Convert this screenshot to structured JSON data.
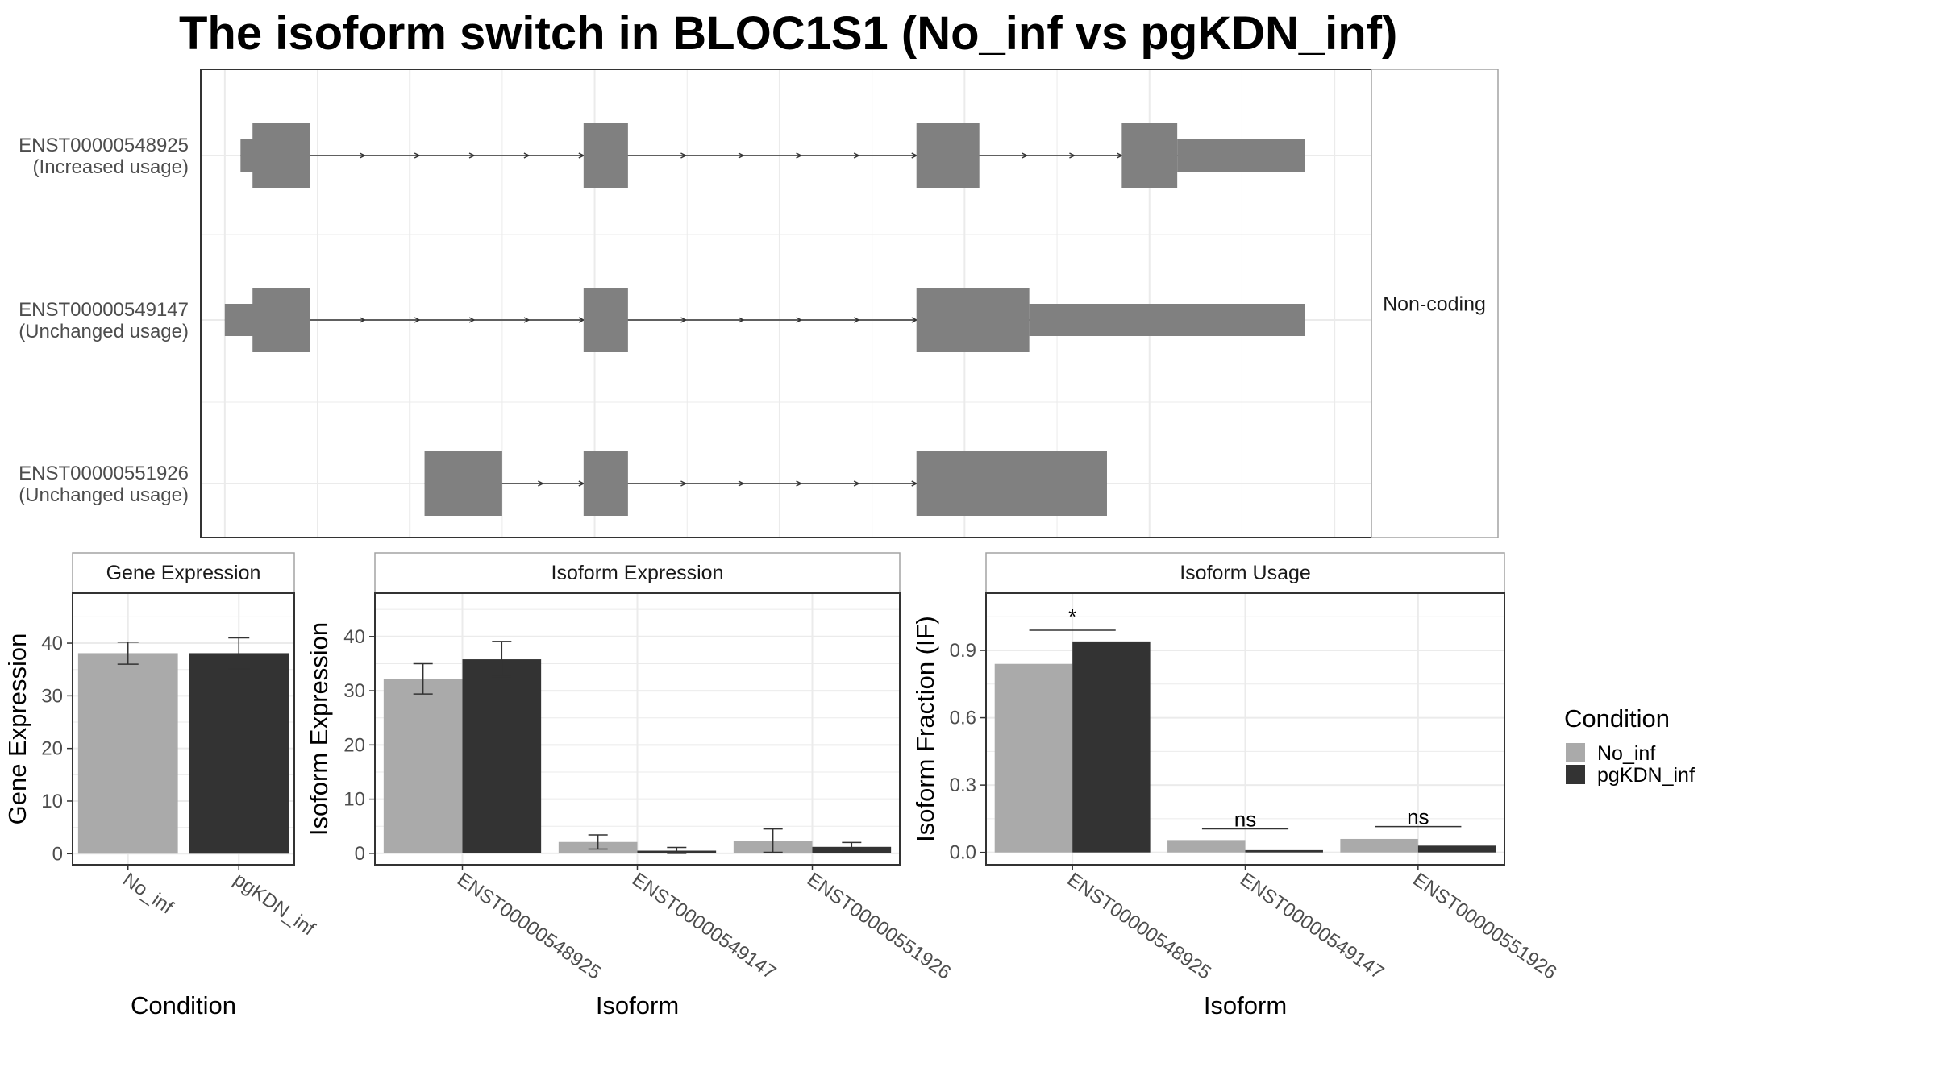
{
  "title": "The isoform switch in BLOC1S1 (No_inf vs pgKDN_inf)",
  "colors": {
    "exon": "#808080",
    "No_inf": "#AAAAAA",
    "pgKDN_inf": "#333333",
    "grid": "#EBEBEB",
    "border": "#333333",
    "strip_border": "#A3A3A3"
  },
  "chart_data": [
    {
      "type": "gene-structure",
      "strip": "Non-coding",
      "grid": true,
      "transcripts": [
        {
          "id": "ENST00000548925",
          "label": "(Increased usage)",
          "exons": [
            {
              "start": 0.85,
              "end": 4.6,
              "kind": "utr"
            },
            {
              "start": 1.5,
              "end": 4.6,
              "kind": "cds"
            },
            {
              "start": 19.4,
              "end": 21.8,
              "kind": "cds"
            },
            {
              "start": 37.4,
              "end": 40.8,
              "kind": "cds"
            },
            {
              "start": 48.5,
              "end": 51.5,
              "kind": "cds"
            },
            {
              "start": 51.5,
              "end": 58.4,
              "kind": "utr"
            }
          ]
        },
        {
          "id": "ENST00000549147",
          "label": "(Unchanged usage)",
          "exons": [
            {
              "start": 0.0,
              "end": 4.6,
              "kind": "utr"
            },
            {
              "start": 1.5,
              "end": 4.6,
              "kind": "cds"
            },
            {
              "start": 19.4,
              "end": 21.8,
              "kind": "cds"
            },
            {
              "start": 37.4,
              "end": 43.5,
              "kind": "cds"
            },
            {
              "start": 43.5,
              "end": 58.4,
              "kind": "utr"
            }
          ]
        },
        {
          "id": "ENST00000551926",
          "label": "(Unchanged usage)",
          "exons": [
            {
              "start": 10.8,
              "end": 15.0,
              "kind": "cds"
            },
            {
              "start": 19.4,
              "end": 21.8,
              "kind": "cds"
            },
            {
              "start": 37.4,
              "end": 47.7,
              "kind": "cds"
            }
          ]
        }
      ]
    },
    {
      "type": "bar",
      "strip": "Gene Expression",
      "xlabel": "Condition",
      "ylabel": "Gene Expression",
      "categories": [
        "No_inf",
        "pgKDN_inf"
      ],
      "values": [
        38.1,
        38.1
      ],
      "errors": [
        [
          36.0,
          40.2
        ],
        [
          35.1,
          41.0
        ]
      ],
      "ylim": [
        -2.1,
        49.5
      ],
      "yticks": [
        0,
        10,
        20,
        30,
        40
      ],
      "grid": true
    },
    {
      "type": "bar",
      "strip": "Isoform Expression",
      "xlabel": "Isoform",
      "ylabel": "Isoform Expression",
      "categories": [
        "ENST00000548925",
        "ENST00000549147",
        "ENST00000551926"
      ],
      "series": [
        {
          "name": "No_inf",
          "values": [
            32.2,
            2.1,
            2.3
          ],
          "errors": [
            [
              29.4,
              35.0
            ],
            [
              0.8,
              3.4
            ],
            [
              0.2,
              4.5
            ]
          ]
        },
        {
          "name": "pgKDN_inf",
          "values": [
            35.8,
            0.5,
            1.2
          ],
          "errors": [
            [
              32.6,
              39.1
            ],
            [
              0.0,
              1.1
            ],
            [
              0.4,
              2.0
            ]
          ]
        }
      ],
      "ylim": [
        -2.1,
        48.0
      ],
      "yticks": [
        0,
        10,
        20,
        30,
        40
      ],
      "grid": true
    },
    {
      "type": "bar",
      "strip": "Isoform Usage",
      "xlabel": "Isoform",
      "ylabel": "Isoform Fraction (IF)",
      "categories": [
        "ENST00000548925",
        "ENST00000549147",
        "ENST00000551926"
      ],
      "series": [
        {
          "name": "No_inf",
          "values": [
            0.84,
            0.055,
            0.06
          ]
        },
        {
          "name": "pgKDN_inf",
          "values": [
            0.94,
            0.01,
            0.03
          ]
        }
      ],
      "significance": [
        "*",
        "ns",
        "ns"
      ],
      "significance_y": [
        0.99,
        0.105,
        0.115
      ],
      "ylim": [
        -0.055,
        1.155
      ],
      "yticks": [
        0.0,
        0.3,
        0.6,
        0.9
      ],
      "ytick_labels": [
        "0.0",
        "0.3",
        "0.6",
        "0.9"
      ],
      "grid": true
    }
  ],
  "legend": {
    "title": "Condition",
    "entries": [
      "No_inf",
      "pgKDN_inf"
    ]
  }
}
